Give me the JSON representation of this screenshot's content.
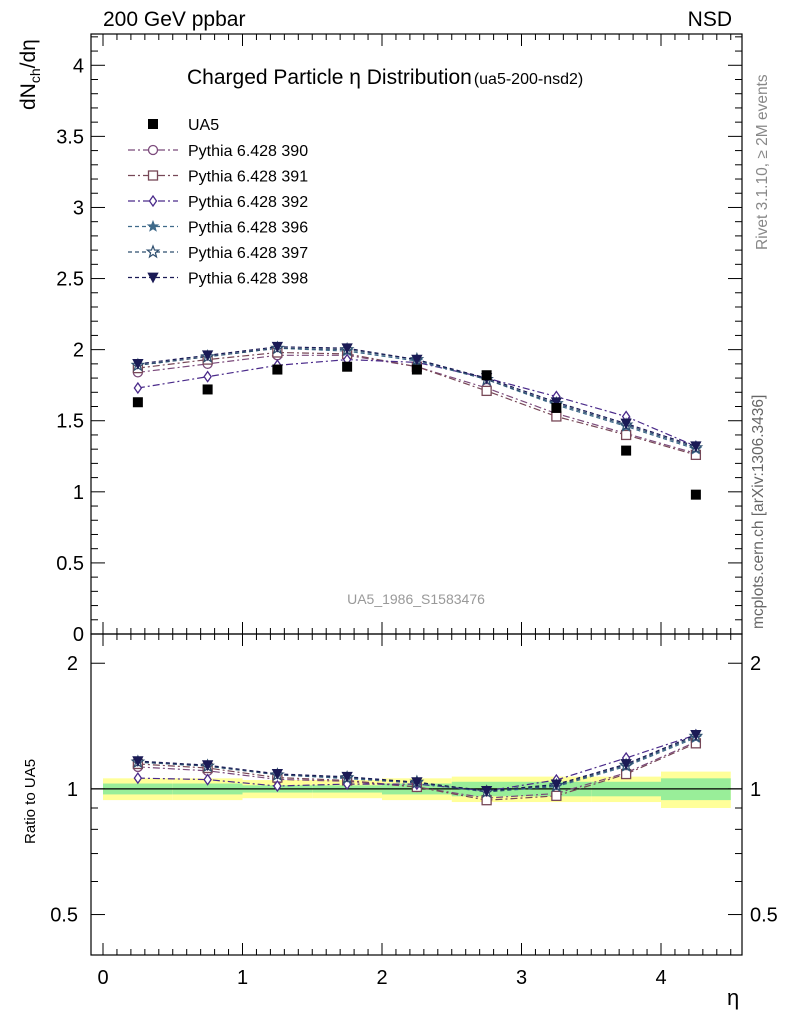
{
  "header": {
    "left": "200 GeV ppbar",
    "right": "NSD"
  },
  "side_labels": {
    "rivet": "Rivet 3.1.10, ≥ 2M events",
    "mcplots": "mcplots.cern.ch [arXiv:1306.3436]"
  },
  "chart_data": {
    "type": "line",
    "title": "Charged Particle η Distribution",
    "title_tag": "(ua5-200-nsd2)",
    "watermark": "UA5_1986_S1583476",
    "xlabel": "η",
    "ylabel_main": "dN_ch/dη",
    "ylabel_ratio": "Ratio to UA5",
    "xlim": [
      -0.1,
      4.5
    ],
    "ylim_main": [
      0,
      4.22
    ],
    "ylim_ratio": [
      0.4,
      2.35
    ],
    "ratio_scale": "log",
    "x_ticks": [
      "0",
      "1",
      "2",
      "3",
      "4"
    ],
    "y_ticks_main": [
      "0",
      "0.5",
      "1",
      "1.5",
      "2",
      "2.5",
      "3",
      "3.5",
      "4"
    ],
    "y_ticks_ratio": [
      "0.5",
      "1",
      "2"
    ],
    "x": [
      0.25,
      0.75,
      1.25,
      1.75,
      2.25,
      2.75,
      3.25,
      3.75,
      4.25
    ],
    "data": {
      "name": "UA5",
      "values": [
        1.63,
        1.72,
        1.86,
        1.88,
        1.86,
        1.82,
        1.59,
        1.29,
        0.98
      ],
      "color": "#000000"
    },
    "series": [
      {
        "name": "Pythia 6.428 390",
        "color": "#7b4a7b",
        "marker": "circle",
        "dash": "7 3 2 3",
        "values": [
          1.84,
          1.9,
          1.96,
          1.96,
          1.88,
          1.73,
          1.55,
          1.41,
          1.27
        ]
      },
      {
        "name": "Pythia 6.428 391",
        "color": "#774857",
        "marker": "square",
        "dash": "7 3 2 3",
        "values": [
          1.87,
          1.93,
          1.98,
          1.97,
          1.88,
          1.71,
          1.53,
          1.4,
          1.26
        ]
      },
      {
        "name": "Pythia 6.428 392",
        "color": "#4a2a8a",
        "marker": "diamond",
        "dash": "7 3 2 3",
        "values": [
          1.73,
          1.81,
          1.89,
          1.93,
          1.91,
          1.8,
          1.67,
          1.53,
          1.32
        ]
      },
      {
        "name": "Pythia 6.428 396",
        "color": "#3f6a8a",
        "marker": "star-filled",
        "dash": "4 3",
        "values": [
          1.89,
          1.95,
          2.01,
          1.99,
          1.92,
          1.79,
          1.61,
          1.46,
          1.3
        ]
      },
      {
        "name": "Pythia 6.428 397",
        "color": "#2f4f6f",
        "marker": "star-open",
        "dash": "4 3",
        "values": [
          1.89,
          1.95,
          2.01,
          2.0,
          1.93,
          1.79,
          1.62,
          1.47,
          1.31
        ]
      },
      {
        "name": "Pythia 6.428 398",
        "color": "#1a1a55",
        "marker": "triangle-down",
        "dash": "4 3",
        "values": [
          1.9,
          1.96,
          2.02,
          2.01,
          1.93,
          1.8,
          1.63,
          1.48,
          1.32
        ]
      }
    ],
    "bands": {
      "yellow": [
        0.06,
        0.06,
        0.05,
        0.05,
        0.06,
        0.07,
        0.07,
        0.07,
        0.1
      ],
      "green": [
        0.03,
        0.03,
        0.02,
        0.02,
        0.03,
        0.04,
        0.04,
        0.04,
        0.06
      ]
    }
  }
}
